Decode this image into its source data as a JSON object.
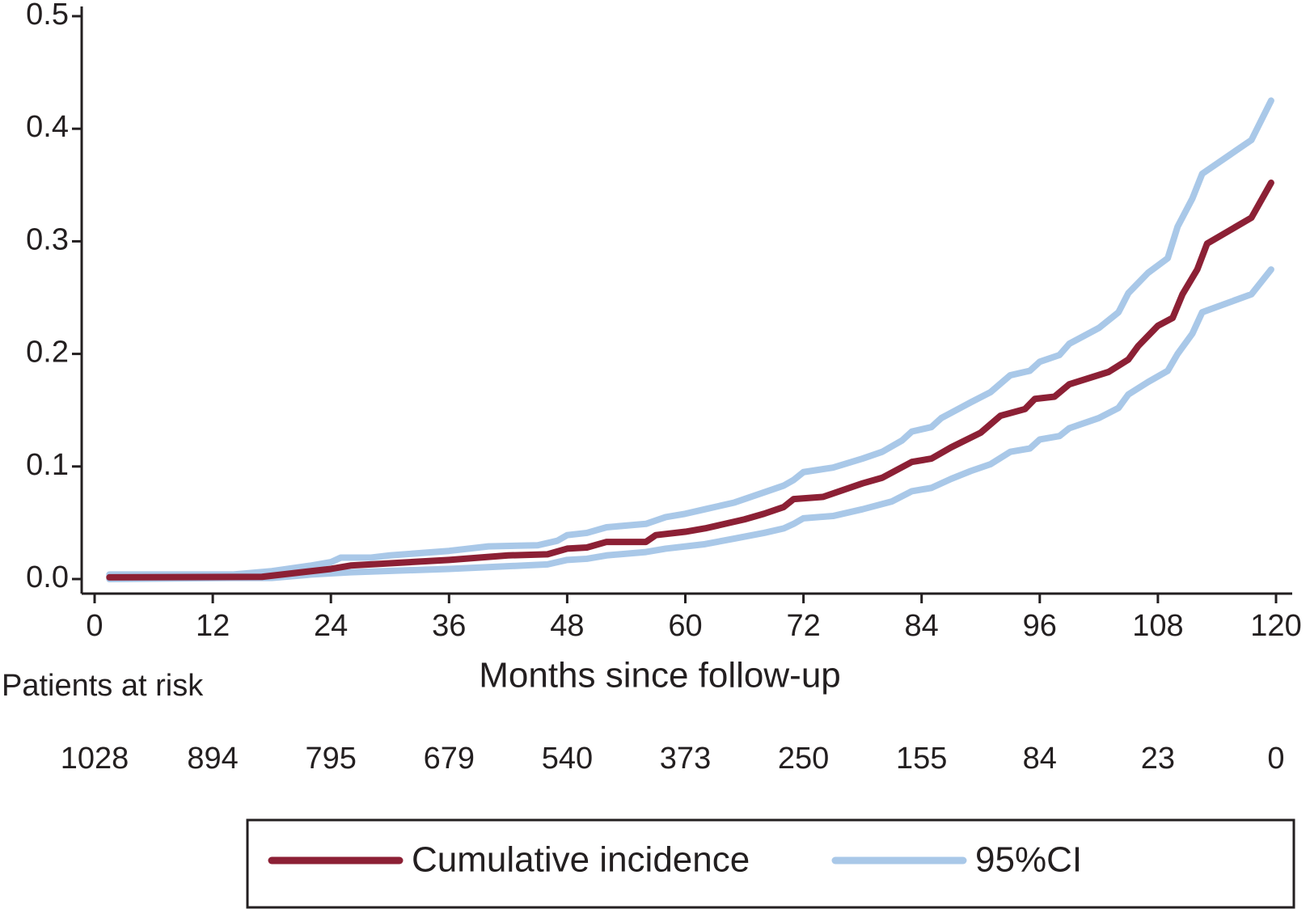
{
  "chart_data": {
    "type": "line",
    "x_label": "Months since follow-up",
    "xlim": [
      0,
      120
    ],
    "xticks": [
      0,
      12,
      24,
      36,
      48,
      60,
      72,
      84,
      96,
      108,
      120
    ],
    "ylim": [
      0,
      0.5
    ],
    "yticks": [
      {
        "value": 0,
        "label": "0.0"
      },
      0.1,
      0.2,
      0.3,
      0.4,
      0.5
    ],
    "series": [
      {
        "name": "Cumulative incidence",
        "color": "#8c2035",
        "x": [
          1.5,
          17,
          24,
          26,
          36,
          42,
          46,
          48,
          50,
          52,
          56,
          57,
          60,
          62,
          66,
          68,
          70,
          71,
          74,
          78,
          80,
          83,
          85,
          87,
          90,
          92,
          94.5,
          95.5,
          97.5,
          99,
          103,
          105,
          106,
          108,
          109.5,
          110.5,
          112,
          113,
          117.5,
          119.5
        ],
        "values": [
          0.0015,
          0.002,
          0.009,
          0.012,
          0.017,
          0.021,
          0.022,
          0.027,
          0.028,
          0.033,
          0.033,
          0.039,
          0.042,
          0.045,
          0.053,
          0.058,
          0.064,
          0.071,
          0.073,
          0.085,
          0.09,
          0.104,
          0.107,
          0.117,
          0.13,
          0.145,
          0.151,
          0.16,
          0.162,
          0.173,
          0.184,
          0.195,
          0.207,
          0.225,
          0.232,
          0.253,
          0.275,
          0.298,
          0.321,
          0.352
        ]
      },
      {
        "name": "95%CI",
        "color": "#a9c8e8",
        "x": [
          1.5,
          14,
          18,
          22,
          24,
          25,
          28,
          30,
          36,
          40,
          45,
          47,
          48,
          50,
          52,
          56,
          58,
          60,
          62,
          65,
          68,
          70,
          71,
          72,
          75,
          78,
          80,
          82,
          83,
          85,
          86,
          89,
          91,
          93,
          95,
          96,
          98,
          99,
          102,
          104,
          105,
          107,
          109,
          110,
          111.5,
          112.5,
          117.5,
          119.5
        ],
        "values": [
          0.004,
          0.004,
          0.007,
          0.012,
          0.015,
          0.019,
          0.019,
          0.021,
          0.025,
          0.029,
          0.03,
          0.034,
          0.039,
          0.041,
          0.046,
          0.049,
          0.055,
          0.058,
          0.062,
          0.068,
          0.077,
          0.083,
          0.088,
          0.095,
          0.099,
          0.107,
          0.113,
          0.123,
          0.131,
          0.135,
          0.143,
          0.157,
          0.166,
          0.181,
          0.185,
          0.193,
          0.199,
          0.209,
          0.223,
          0.237,
          0.254,
          0.272,
          0.285,
          0.313,
          0.338,
          0.36,
          0.39,
          0.425
        ]
      },
      {
        "name": "95%CI",
        "color": "#a9c8e8",
        "x": [
          1.5,
          14,
          18,
          22,
          26,
          36,
          46,
          48,
          50,
          52,
          56,
          58,
          62,
          65,
          68,
          70,
          71,
          72,
          75,
          78,
          81,
          83,
          85,
          87,
          89,
          91,
          93,
          95,
          96,
          98,
          99,
          102,
          104,
          105,
          107,
          109,
          110,
          111.5,
          112.5,
          117.5,
          119.5
        ],
        "values": [
          0,
          0.001,
          0.001,
          0.004,
          0.006,
          0.009,
          0.013,
          0.017,
          0.018,
          0.021,
          0.024,
          0.027,
          0.031,
          0.036,
          0.041,
          0.045,
          0.049,
          0.054,
          0.056,
          0.062,
          0.069,
          0.078,
          0.081,
          0.089,
          0.096,
          0.102,
          0.113,
          0.116,
          0.124,
          0.127,
          0.134,
          0.143,
          0.152,
          0.164,
          0.175,
          0.185,
          0.2,
          0.218,
          0.237,
          0.253,
          0.275
        ]
      }
    ],
    "risk_table": {
      "title": "Patients at risk",
      "values": [
        "1028",
        "894",
        "795",
        "679",
        "540",
        "373",
        "250",
        "155",
        "84",
        "23",
        "0"
      ]
    }
  }
}
